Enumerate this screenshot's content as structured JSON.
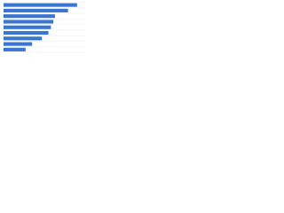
{
  "chart_data": {
    "type": "bar",
    "orientation": "horizontal",
    "categories": [
      null,
      null,
      null,
      null,
      null,
      null,
      null,
      null,
      null
    ],
    "values": [
      90,
      79,
      63,
      61,
      58,
      55,
      47,
      35,
      27
    ],
    "color": "#3a76d0",
    "xlim": [
      0,
      100
    ],
    "grid": true
  }
}
